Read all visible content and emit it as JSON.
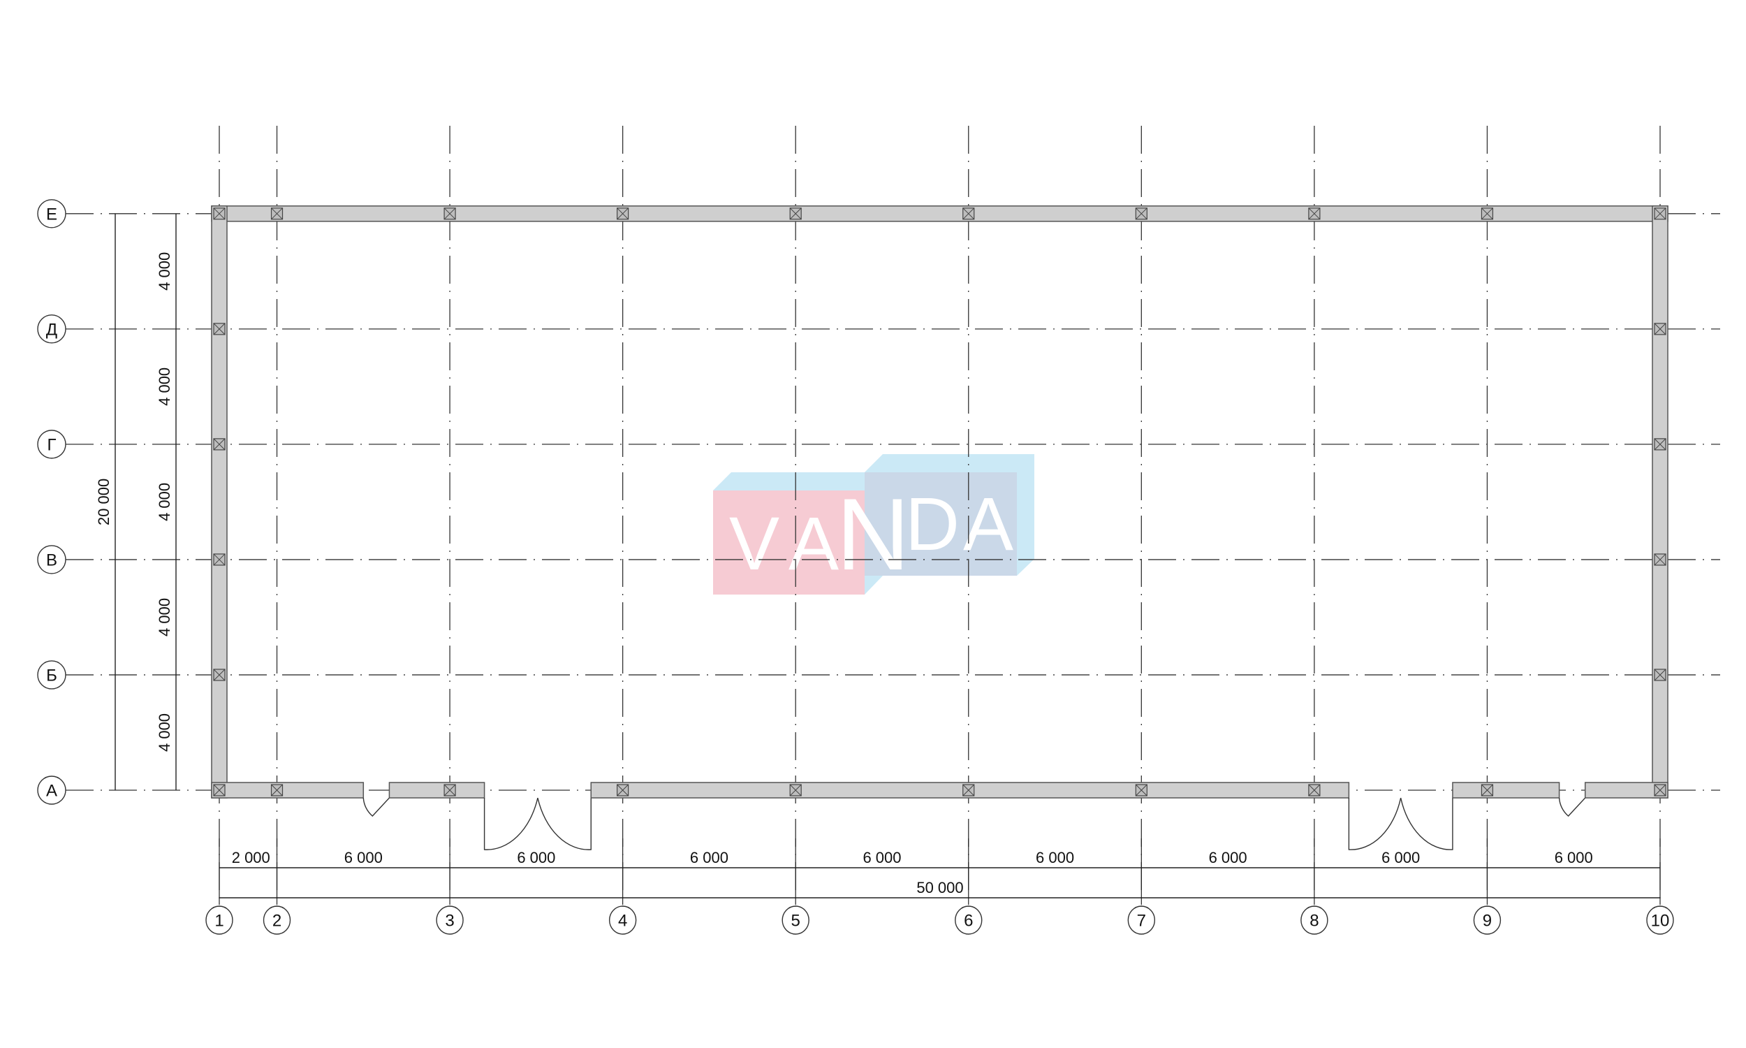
{
  "plan": {
    "column_axes": {
      "labels": [
        "1",
        "2",
        "3",
        "4",
        "5",
        "6",
        "7",
        "8",
        "9",
        "10"
      ],
      "positions_mm": [
        0,
        2000,
        8000,
        14000,
        20000,
        26000,
        32000,
        38000,
        44000,
        50000
      ]
    },
    "row_axes": {
      "labels": [
        "А",
        "Б",
        "В",
        "Г",
        "Д",
        "Е"
      ],
      "positions_mm": [
        0,
        4000,
        8000,
        12000,
        16000,
        20000
      ]
    },
    "horizontal_dimensions": {
      "segments": [
        "2 000",
        "6 000",
        "6 000",
        "6 000",
        "6 000",
        "6 000",
        "6 000",
        "6 000",
        "6 000"
      ],
      "overall": "50 000"
    },
    "vertical_dimensions": {
      "segments": [
        "4 000",
        "4 000",
        "4 000",
        "4 000",
        "4 000"
      ],
      "overall": "20 000"
    },
    "doors": [
      {
        "type": "single",
        "from_mm": 5000,
        "to_mm": 5900
      },
      {
        "type": "double",
        "from_mm": 9200,
        "to_mm": 12900
      },
      {
        "type": "double",
        "from_mm": 39200,
        "to_mm": 42800
      },
      {
        "type": "single",
        "from_mm": 46500,
        "to_mm": 47400
      }
    ]
  },
  "watermark": {
    "text": "VANDA",
    "colors": {
      "pink": "#f6cbd3",
      "blue": "#cad8e8",
      "light_blue": "#cbe9f6"
    }
  }
}
